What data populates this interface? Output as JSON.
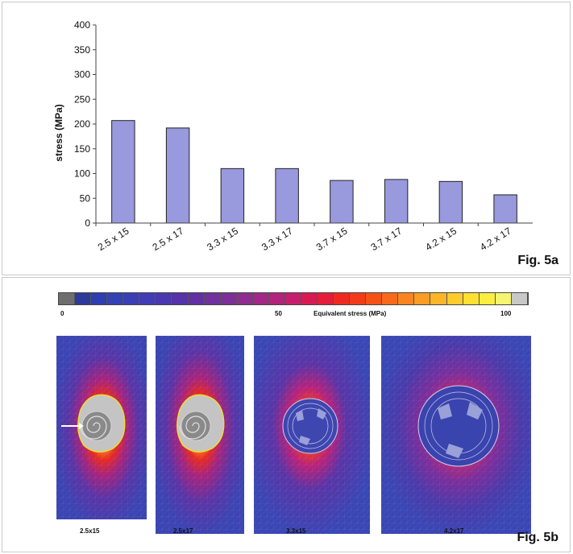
{
  "chart_data": {
    "type": "bar",
    "categories": [
      "2.5 x 15",
      "2.5 x 17",
      "3.3 x 15",
      "3.3 x 17",
      "3.7 x 15",
      "3.7 x 17",
      "4.2 x 15",
      "4.2 x 17"
    ],
    "values": [
      207,
      192,
      110,
      110,
      86,
      88,
      84,
      57
    ],
    "ylabel": "stress (MPa)",
    "ylim": [
      0,
      400
    ],
    "yticks": [
      "0",
      "50",
      "100",
      "150",
      "200",
      "250",
      "300",
      "350",
      "400"
    ],
    "bar_color": "#9999dd",
    "grid": false,
    "legend": "none"
  },
  "fig_a_label": "Fig. 5a",
  "fig_b_label": "Fig. 5b",
  "colorbar": {
    "label_min": "0",
    "label_mid": "50",
    "title": "Equivalent stress (MPa)",
    "label_max": "100",
    "colors": [
      "#6e6e6e",
      "#2c3a9a",
      "#2e3fb0",
      "#3442b5",
      "#3b3fb6",
      "#423db5",
      "#4a38b0",
      "#5533a8",
      "#6230a3",
      "#70309e",
      "#7e2e99",
      "#8e2c90",
      "#a12887",
      "#b2237c",
      "#c61e6c",
      "#d81a52",
      "#e51d38",
      "#ee2a20",
      "#f23c18",
      "#f55218",
      "#f86a1a",
      "#fa8420",
      "#fb9d24",
      "#fcb528",
      "#fdcb2c",
      "#fde030",
      "#fcee40",
      "#f6f570",
      "#c8c8c8"
    ]
  },
  "simulations": [
    {
      "caption": "2.5x15"
    },
    {
      "caption": "2.5x17"
    },
    {
      "caption": "3.3x15"
    },
    {
      "caption": "4.2x17"
    }
  ]
}
